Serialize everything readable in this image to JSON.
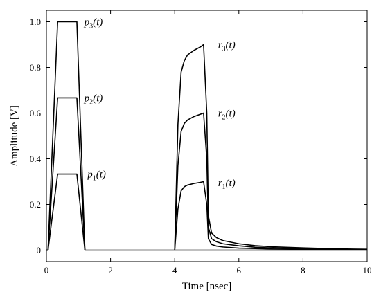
{
  "chart_data": {
    "type": "line",
    "title": "",
    "xlabel": "Time [nsec]",
    "ylabel": "Amplitude [V]",
    "xlim": [
      0,
      10
    ],
    "ylim": [
      -0.05,
      1.05
    ],
    "xticks": [
      0,
      2,
      4,
      6,
      8,
      10
    ],
    "yticks": [
      0,
      0.2,
      0.4,
      0.6,
      0.8,
      1.0
    ],
    "xtick_labels": [
      "0",
      "2",
      "4",
      "6",
      "8",
      "10"
    ],
    "ytick_labels": [
      "0",
      "0.2",
      "0.4",
      "0.6",
      "0.8",
      "1.0"
    ],
    "grid": false,
    "legend": "none",
    "series": [
      {
        "name": "p3(t)",
        "label_base": "p",
        "label_sub": "3",
        "x": [
          0,
          0.05,
          0.35,
          0.95,
          1.2,
          4,
          10
        ],
        "y": [
          0,
          0,
          1.0,
          1.0,
          0,
          0,
          0
        ]
      },
      {
        "name": "p2(t)",
        "label_base": "p",
        "label_sub": "2",
        "x": [
          0,
          0.05,
          0.35,
          0.95,
          1.2
        ],
        "y": [
          0,
          0,
          0.667,
          0.667,
          0
        ]
      },
      {
        "name": "p1(t)",
        "label_base": "p",
        "label_sub": "1",
        "x": [
          0,
          0.05,
          0.35,
          0.95,
          1.2
        ],
        "y": [
          0,
          0,
          0.333,
          0.333,
          0
        ]
      },
      {
        "name": "r3(t)",
        "label_base": "r",
        "label_sub": "3",
        "x": [
          4.0,
          4.1,
          4.2,
          4.3,
          4.4,
          4.6,
          4.8,
          4.9,
          5.0,
          5.05,
          5.15,
          5.3,
          5.5,
          6.0,
          6.5,
          7.0,
          8.0,
          9.0,
          10.0
        ],
        "y": [
          0,
          0.55,
          0.78,
          0.83,
          0.855,
          0.875,
          0.89,
          0.9,
          0.6,
          0.15,
          0.075,
          0.055,
          0.042,
          0.028,
          0.02,
          0.015,
          0.01,
          0.006,
          0.004
        ]
      },
      {
        "name": "r2(t)",
        "label_base": "r",
        "label_sub": "2",
        "x": [
          4.0,
          4.1,
          4.2,
          4.3,
          4.4,
          4.6,
          4.8,
          4.9,
          5.0,
          5.05,
          5.15,
          5.3,
          5.5,
          6.0,
          6.5,
          7.0,
          8.0,
          9.0,
          10.0
        ],
        "y": [
          0,
          0.37,
          0.52,
          0.555,
          0.57,
          0.585,
          0.595,
          0.6,
          0.4,
          0.1,
          0.05,
          0.037,
          0.028,
          0.019,
          0.013,
          0.01,
          0.006,
          0.004,
          0.003
        ]
      },
      {
        "name": "r1(t)",
        "label_base": "r",
        "label_sub": "1",
        "x": [
          4.0,
          4.1,
          4.2,
          4.3,
          4.4,
          4.6,
          4.8,
          4.9,
          5.0,
          5.05,
          5.15,
          5.3,
          5.5,
          6.0,
          6.5,
          7.0,
          8.0,
          9.0,
          10.0
        ],
        "y": [
          0,
          0.18,
          0.26,
          0.278,
          0.285,
          0.292,
          0.297,
          0.3,
          0.2,
          0.05,
          0.025,
          0.018,
          0.014,
          0.009,
          0.007,
          0.005,
          0.003,
          0.002,
          0.0015
        ]
      }
    ],
    "annotations": [
      {
        "series": "p3(t)",
        "x": 1.18,
        "y": 1.0
      },
      {
        "series": "p2(t)",
        "x": 1.18,
        "y": 0.667
      },
      {
        "series": "p1(t)",
        "x": 1.28,
        "y": 0.333
      },
      {
        "series": "r3(t)",
        "x": 5.35,
        "y": 0.9
      },
      {
        "series": "r2(t)",
        "x": 5.35,
        "y": 0.6
      },
      {
        "series": "r1(t)",
        "x": 5.35,
        "y": 0.295
      }
    ]
  }
}
